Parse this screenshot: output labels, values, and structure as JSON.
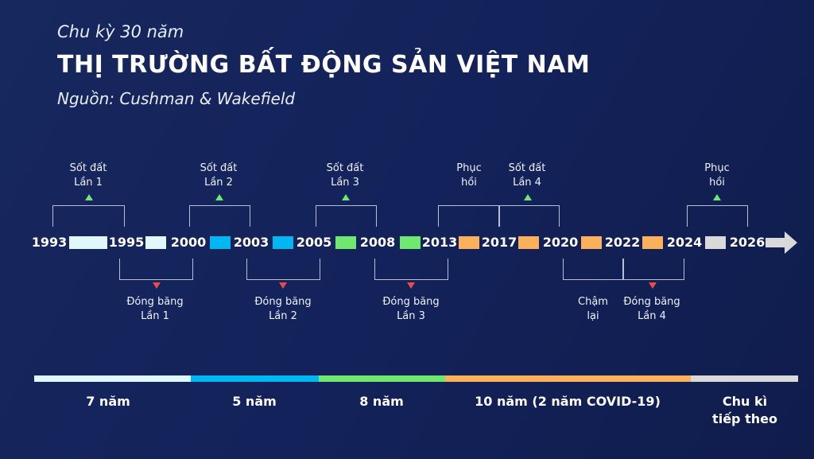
{
  "header": {
    "subtitle": "Chu kỳ 30 năm",
    "title": "THỊ TRƯỜNG BẤT ĐỘNG SẢN VIỆT NAM",
    "source": "Nguồn: Cushman & Wakefield"
  },
  "years": [
    "1993",
    "1995",
    "2000",
    "2003",
    "2005",
    "2008",
    "2013",
    "2017",
    "2020",
    "2022",
    "2024",
    "2026"
  ],
  "colors": {
    "c1": "#e0f7fc",
    "c2": "#00b7f1",
    "c3": "#6ee86e",
    "c4": "#fbb15b",
    "c5": "#d9d9d9",
    "up": "#6ee86e",
    "down": "#f04848"
  },
  "events_top": [
    {
      "line1": "Sốt đất",
      "line2": "Lần 1"
    },
    {
      "line1": "Sốt đất",
      "line2": "Lần 2"
    },
    {
      "line1": "Sốt đất",
      "line2": "Lần 3"
    },
    {
      "line1": "Phục",
      "line2": "hồi"
    },
    {
      "line1": "Sốt đất",
      "line2": "Lần 4"
    },
    {
      "line1": "Phục",
      "line2": "hồi"
    }
  ],
  "events_bottom": [
    {
      "line1": "Đóng băng",
      "line2": "Lần 1"
    },
    {
      "line1": "Đóng băng",
      "line2": "Lần 2"
    },
    {
      "line1": "Đóng băng",
      "line2": "Lần 3"
    },
    {
      "line1": "Chậm",
      "line2": "lại"
    },
    {
      "line1": "Đóng băng",
      "line2": "Lần 4"
    }
  ],
  "durations": [
    {
      "line1": "7 năm"
    },
    {
      "line1": "5 năm"
    },
    {
      "line1": "8 năm"
    },
    {
      "line1": "10 năm (2 năm COVID-19)"
    },
    {
      "line1": "Chu kì",
      "line2": "tiếp theo"
    }
  ]
}
